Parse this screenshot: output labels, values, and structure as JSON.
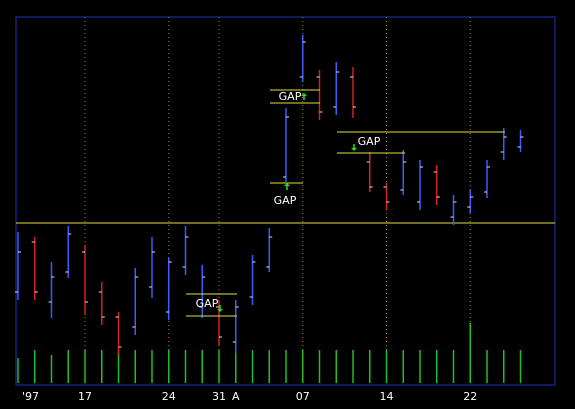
{
  "chart_data": {
    "type": "ohlc",
    "categories": [
      "'97",
      null,
      null,
      null,
      "17",
      null,
      null,
      null,
      null,
      "24",
      null,
      null,
      "31",
      "A",
      null,
      null,
      null,
      "07",
      null,
      null,
      null,
      null,
      "14",
      null,
      null,
      null,
      null,
      "22",
      null,
      null,
      null
    ],
    "open": [
      110,
      160,
      100,
      130,
      150,
      110,
      85,
      75,
      115,
      90,
      135,
      95,
      95,
      60,
      105,
      135,
      225,
      325,
      325,
      295,
      325,
      240,
      215,
      212,
      200,
      230,
      185,
      195,
      210,
      250,
      255
    ],
    "high": [
      170,
      165,
      140,
      176,
      157,
      120,
      90,
      134,
      165,
      144,
      176,
      137,
      102,
      102,
      147,
      174,
      294,
      367,
      332,
      340,
      335,
      250,
      219,
      252,
      242,
      237,
      207,
      212,
      242,
      274,
      272
    ],
    "low": [
      102,
      102,
      84,
      124,
      87,
      77,
      47,
      67,
      104,
      82,
      127,
      84,
      57,
      49,
      97,
      130,
      220,
      320,
      282,
      287,
      284,
      210,
      192,
      207,
      192,
      197,
      177,
      189,
      204,
      242,
      250
    ],
    "close": [
      150,
      110,
      125,
      168,
      100,
      85,
      55,
      125,
      150,
      140,
      165,
      125,
      65,
      95,
      140,
      165,
      285,
      360,
      290,
      330,
      295,
      215,
      200,
      240,
      235,
      205,
      200,
      205,
      235,
      265,
      265
    ],
    "volume": [
      25,
      33,
      28,
      33,
      33,
      33,
      33,
      33,
      33,
      33,
      33,
      33,
      33,
      33,
      33,
      33,
      33,
      33,
      33,
      33,
      33,
      33,
      33,
      33,
      33,
      33,
      33,
      60,
      33,
      33,
      33
    ],
    "up_color": "#3a5cff",
    "down_color": "#d42020",
    "volume_color": "#20c020",
    "ylim": [
      17,
      385
    ],
    "volume_lim": [
      0,
      100
    ],
    "reference_line": 179,
    "gaps": [
      {
        "label": "GAP",
        "direction": "up",
        "levels": [
          219
        ]
      },
      {
        "label": "GAP",
        "direction": "up",
        "levels": [
          312,
          299
        ]
      },
      {
        "label": "GAP",
        "direction": "down",
        "levels": [
          270,
          249
        ]
      },
      {
        "label": "GAP",
        "direction": "down",
        "levels": [
          108,
          86
        ]
      }
    ]
  }
}
